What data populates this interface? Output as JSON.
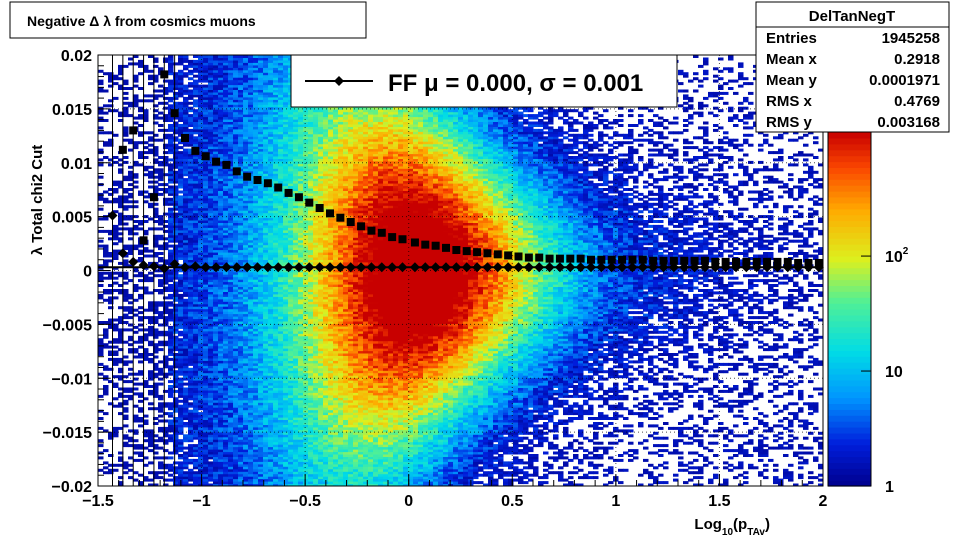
{
  "title_box": {
    "text": "Negative Δ λ from cosmics muons"
  },
  "stats_box": {
    "name": "DelTanNegT",
    "rows": [
      {
        "label": "Entries",
        "value": "1945258"
      },
      {
        "label": "Mean x",
        "value": "0.2918"
      },
      {
        "label": "Mean y",
        "value": "0.0001971"
      },
      {
        "label": "RMS x",
        "value": "0.4769"
      },
      {
        "label": "RMS y",
        "value": "0.003168"
      }
    ]
  },
  "legend": {
    "text": "FF μ =  0.000, σ =   0.001"
  },
  "colorbar": {
    "labels": [
      {
        "value": 100,
        "text": "10",
        "exp": "2"
      },
      {
        "value": 10,
        "text": "10",
        "exp": ""
      },
      {
        "value": 1,
        "text": "1",
        "exp": ""
      }
    ],
    "range": [
      1,
      1200
    ],
    "log": true
  },
  "chart_data": {
    "type": "heatmap",
    "title": "Negative Δ λ from cosmics muons",
    "xlabel": "Log",
    "xlabel_sub": "10",
    "xlabel_paren": "(p",
    "xlabel_sub2": "TAv",
    "xlabel_close": ")",
    "ylabel": "λ  Total chi2 Cut",
    "xlim": [
      -1.5,
      2
    ],
    "ylim": [
      -0.02,
      0.02
    ],
    "x_ticks": [
      -1.5,
      -1,
      -0.5,
      0,
      0.5,
      1,
      1.5,
      2
    ],
    "x_tick_labels": [
      "−1.5",
      "−1",
      "−0.5",
      "0",
      "0.5",
      "1",
      "1.5",
      "2"
    ],
    "y_ticks": [
      -0.02,
      -0.015,
      -0.01,
      -0.005,
      0,
      0.005,
      0.01,
      0.015,
      0.02
    ],
    "y_tick_labels": [
      "−0.02",
      "−0.015",
      "−0.01",
      "−0.005",
      "0",
      "0.005",
      "0.01",
      "0.015",
      "0.02"
    ],
    "grid": true,
    "colorscale": "rainbow-log",
    "series": [
      {
        "name": "FF",
        "marker": "diamond",
        "x": [
          -1.43,
          -1.38,
          -1.33,
          -1.28,
          -1.23,
          -1.18,
          -1.13,
          -1.08,
          -1.03,
          -0.98,
          -0.93,
          -0.88,
          -0.83,
          -0.78,
          -0.73,
          -0.68,
          -0.63,
          -0.58,
          -0.53,
          -0.48,
          -0.43,
          -0.38,
          -0.33,
          -0.28,
          -0.23,
          -0.18,
          -0.13,
          -0.08,
          -0.03,
          0.03,
          0.08,
          0.13,
          0.18,
          0.23,
          0.28,
          0.33,
          0.38,
          0.43,
          0.48,
          0.53,
          0.58,
          0.63,
          0.68,
          0.73,
          0.78,
          0.83,
          0.88,
          0.93,
          0.98,
          1.03,
          1.08,
          1.13,
          1.18,
          1.23,
          1.28,
          1.33,
          1.38,
          1.43,
          1.48,
          1.53,
          1.58,
          1.63,
          1.68,
          1.73,
          1.78,
          1.83,
          1.88,
          1.93,
          1.98
        ],
        "y": [
          0.0051,
          0.0016,
          0.0008,
          0.0005,
          0.0004,
          0.0002,
          0.0006,
          0.0003,
          0.0004,
          0.0003,
          0.0003,
          0.0003,
          0.0003,
          0.0003,
          0.0003,
          0.0003,
          0.0003,
          0.0003,
          0.0003,
          0.0003,
          0.0003,
          0.0003,
          0.0003,
          0.0003,
          0.0003,
          0.0003,
          0.0003,
          0.0003,
          0.0003,
          0.0003,
          0.0003,
          0.0003,
          0.0003,
          0.0003,
          0.0003,
          0.0003,
          0.0003,
          0.0003,
          0.0003,
          0.0003,
          0.0003,
          0.0003,
          0.0003,
          0.0003,
          0.0003,
          0.0003,
          0.0003,
          0.0003,
          0.0003,
          0.0003,
          0.0003,
          0.0003,
          0.0003,
          0.0003,
          0.0003,
          0.0003,
          0.0003,
          0.0003,
          0.0003,
          0.0003,
          0.0003,
          0.0003,
          0.0003,
          0.0003,
          0.0003,
          0.0003,
          0.0003,
          0.0003,
          0.0003
        ]
      },
      {
        "name": "",
        "marker": "square",
        "x": [
          -1.28,
          -1.23,
          -1.18,
          -1.13,
          -1.08,
          -1.03,
          -0.98,
          -0.93,
          -0.88,
          -0.83,
          -0.78,
          -0.73,
          -0.68,
          -0.63,
          -0.58,
          -0.53,
          -0.48,
          -0.43,
          -0.38,
          -0.33,
          -0.28,
          -0.23,
          -0.18,
          -0.13,
          -0.08,
          -0.03,
          0.03,
          0.08,
          0.13,
          0.18,
          0.23,
          0.28,
          0.33,
          0.38,
          0.43,
          0.48,
          0.53,
          0.58,
          0.63,
          0.68,
          0.73,
          0.78,
          0.83,
          0.88,
          0.93,
          0.98,
          1.03,
          1.08,
          1.13,
          1.18,
          1.23,
          1.28,
          1.33,
          1.38,
          1.43,
          1.48,
          1.53,
          1.58,
          1.63,
          1.68,
          1.73,
          1.78,
          1.83,
          1.88,
          1.93,
          1.98
        ],
        "y": [
          0.0028,
          0.0068,
          0.0182,
          0.0146,
          0.0123,
          0.0111,
          0.0106,
          0.0101,
          0.0098,
          0.0092,
          0.0087,
          0.0084,
          0.0081,
          0.0077,
          0.0072,
          0.0068,
          0.0063,
          0.0058,
          0.0053,
          0.0049,
          0.0045,
          0.0041,
          0.0037,
          0.0035,
          0.0031,
          0.0029,
          0.0026,
          0.0024,
          0.0023,
          0.0021,
          0.0019,
          0.0018,
          0.0017,
          0.0016,
          0.0015,
          0.0014,
          0.0013,
          0.0012,
          0.0012,
          0.0011,
          0.0011,
          0.0011,
          0.0011,
          0.001,
          0.001,
          0.001,
          0.001,
          0.001,
          0.001,
          0.0009,
          0.0009,
          0.0009,
          0.0009,
          0.0009,
          0.0009,
          0.0008,
          0.0008,
          0.0008,
          0.0008,
          0.0008,
          0.0008,
          0.0008,
          0.0008,
          0.0007,
          0.0007,
          0.0007
        ]
      },
      {
        "name": "",
        "marker": "square",
        "x": [
          -1.33,
          -1.38
        ],
        "y": [
          0.013,
          0.0112
        ]
      }
    ]
  }
}
